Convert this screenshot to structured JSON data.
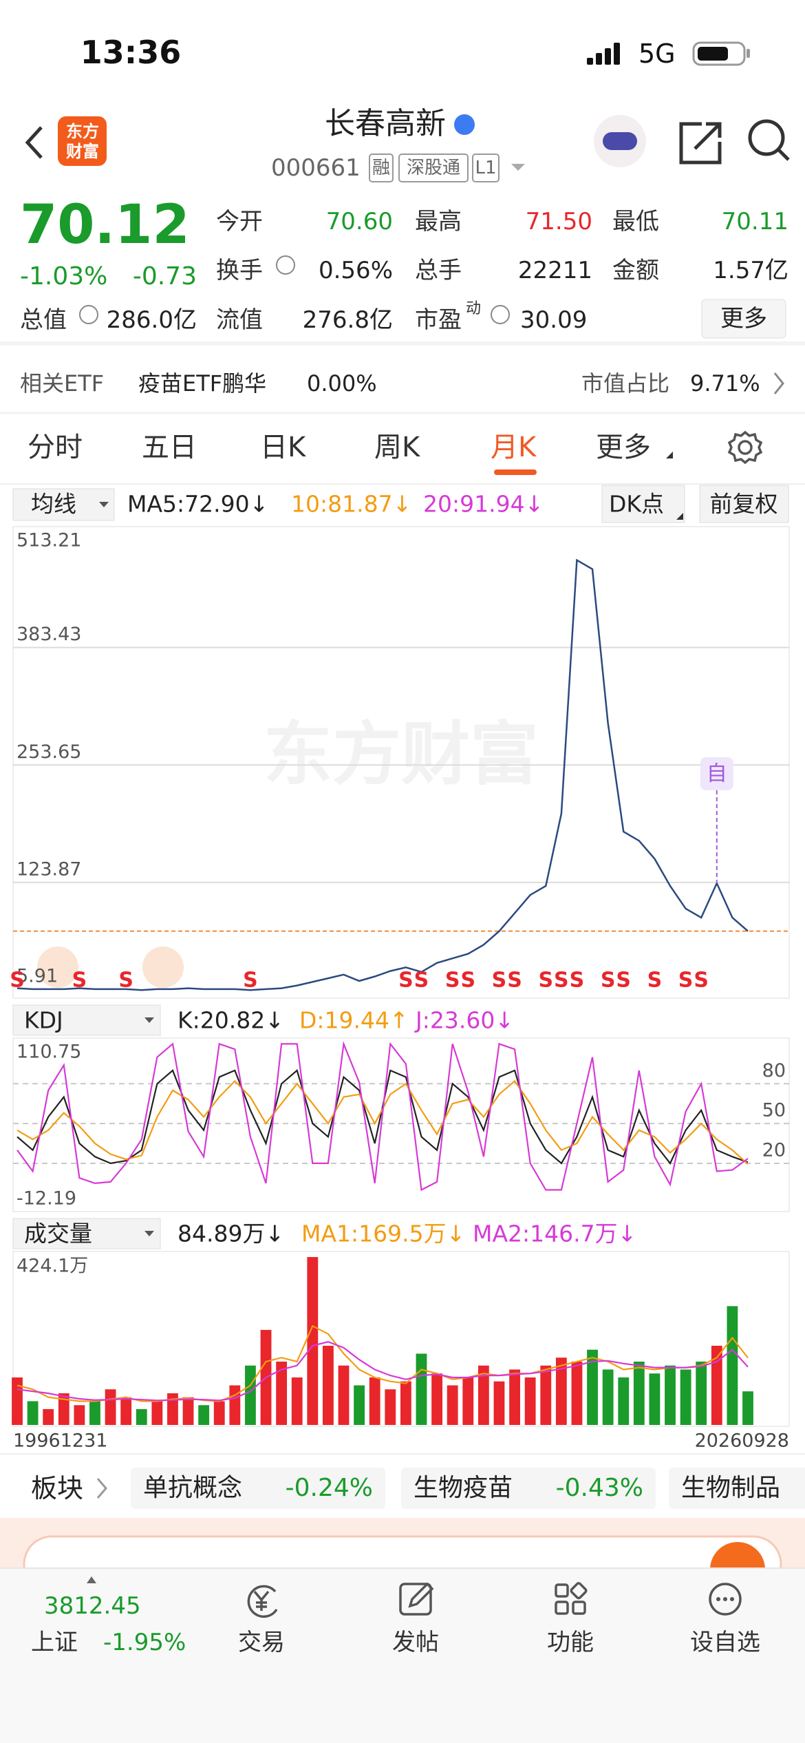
{
  "status_bar": {
    "time": "13:36",
    "network": "5G"
  },
  "header": {
    "logo": [
      "东方",
      "财富"
    ],
    "title": "长春高新",
    "code": "000661",
    "tags": [
      "融",
      "深股通",
      "L1"
    ]
  },
  "quote": {
    "price": "70.12",
    "change_pct": "-1.03%",
    "change": "-0.73",
    "color": "#1a9b2b",
    "fields": [
      {
        "label": "今开",
        "value": "70.60",
        "color": "#1a9b2b"
      },
      {
        "label": "最高",
        "value": "71.50",
        "color": "#e8262b"
      },
      {
        "label": "最低",
        "value": "70.11",
        "color": "#1a9b2b"
      },
      {
        "label": "换手",
        "value": "0.56%"
      },
      {
        "label": "总手",
        "value": "22211"
      },
      {
        "label": "金额",
        "value": "1.57亿"
      },
      {
        "label": "总值",
        "value": "286.0亿"
      },
      {
        "label": "流值",
        "value": "276.8亿"
      },
      {
        "label": "市盈",
        "sup": "动",
        "value": "30.09"
      }
    ],
    "more": "更多"
  },
  "etf": {
    "label": "相关ETF",
    "name": "疫苗ETF鹏华",
    "change": "0.00%",
    "share_label": "市值占比",
    "share": "9.71%"
  },
  "tabs": [
    "分时",
    "五日",
    "日K",
    "周K",
    "月K",
    "更多"
  ],
  "active_tab": 4,
  "ma_row": {
    "selector": "均线",
    "items": [
      {
        "text": "MA5:72.90↓",
        "color": "#222222"
      },
      {
        "text": "10:81.87↓",
        "color": "#f39c12"
      },
      {
        "text": "20:91.94↓",
        "color": "#d63ad6"
      }
    ],
    "buttons": [
      "DK点",
      "前复权"
    ]
  },
  "price_chart": {
    "type": "line",
    "watermark": "东方财富",
    "color": "#2b4a7f",
    "values": [
      7,
      6,
      6,
      6,
      7,
      6,
      6,
      6,
      5,
      6,
      6,
      7,
      6,
      6,
      6,
      5,
      6,
      7,
      10,
      14,
      18,
      22,
      15,
      20,
      26,
      30,
      25,
      35,
      40,
      45,
      55,
      70,
      90,
      110,
      120,
      200,
      480,
      470,
      300,
      180,
      170,
      150,
      120,
      95,
      85,
      123,
      85,
      70.12
    ],
    "ylim": [
      5.91,
      513.21
    ],
    "yticks": [
      513.21,
      383.43,
      253.65,
      123.87,
      5.91
    ],
    "grid": true,
    "last_price": 70.12,
    "last_price_color": "#f08a3c",
    "signals": {
      "label": "S",
      "color": "#e8262b",
      "indices": [
        0,
        4,
        7,
        15,
        25,
        26,
        28,
        29,
        31,
        32,
        34,
        35,
        36,
        38,
        39,
        41,
        43,
        44
      ]
    },
    "marker": {
      "label": "自",
      "index": 45,
      "color": "#a25ad9"
    }
  },
  "kdj_row": {
    "selector": "KDJ",
    "items": [
      {
        "text": "K:20.82↓",
        "color": "#222222"
      },
      {
        "text": "D:19.44↑",
        "color": "#f39c12"
      },
      {
        "text": "J:23.60↓",
        "color": "#d63ad6"
      }
    ]
  },
  "kdj_chart": {
    "type": "line",
    "ylim": [
      -12.19,
      110.75
    ],
    "yticks": [
      110.75,
      -12.19
    ],
    "ref_lines": [
      80,
      50,
      20
    ],
    "series": [
      {
        "color": "#222222",
        "values": [
          40,
          30,
          55,
          70,
          35,
          25,
          20,
          22,
          30,
          80,
          90,
          60,
          45,
          85,
          90,
          60,
          35,
          80,
          90,
          50,
          40,
          85,
          75,
          35,
          90,
          85,
          40,
          30,
          80,
          70,
          45,
          85,
          90,
          50,
          30,
          20,
          40,
          70,
          30,
          25,
          60,
          35,
          20,
          45,
          60,
          30,
          25,
          20.82
        ]
      },
      {
        "color": "#f39c12",
        "values": [
          45,
          38,
          45,
          58,
          48,
          35,
          27,
          23,
          26,
          55,
          75,
          68,
          55,
          70,
          82,
          70,
          50,
          65,
          80,
          65,
          50,
          70,
          72,
          50,
          72,
          80,
          60,
          42,
          65,
          68,
          55,
          72,
          82,
          65,
          45,
          30,
          35,
          55,
          42,
          30,
          45,
          40,
          28,
          38,
          50,
          38,
          30,
          19.44
        ]
      },
      {
        "color": "#d63ad6",
        "values": [
          30,
          14,
          75,
          94,
          9,
          5,
          6,
          20,
          38,
          100,
          110,
          44,
          25,
          110,
          106,
          40,
          5,
          110,
          110,
          20,
          20,
          110,
          81,
          5,
          110,
          95,
          0,
          6,
          110,
          74,
          25,
          110,
          106,
          20,
          0,
          0,
          50,
          100,
          6,
          15,
          90,
          25,
          4,
          59,
          80,
          14,
          15,
          23.6
        ]
      }
    ]
  },
  "volume_row": {
    "selector": "成交量",
    "items": [
      {
        "text": "84.89万↓",
        "color": "#222222"
      },
      {
        "text": "MA1:169.5万↓",
        "color": "#f39c12"
      },
      {
        "text": "MA2:146.7万↓",
        "color": "#d63ad6"
      }
    ]
  },
  "volume_chart": {
    "type": "bar",
    "up_color": "#e8262b",
    "down_color": "#1a9b2b",
    "values": [
      120,
      60,
      40,
      80,
      50,
      60,
      90,
      70,
      40,
      60,
      80,
      70,
      50,
      60,
      100,
      150,
      240,
      160,
      120,
      424,
      200,
      150,
      100,
      120,
      90,
      110,
      180,
      130,
      100,
      120,
      150,
      110,
      140,
      120,
      150,
      170,
      160,
      190,
      140,
      120,
      160,
      130,
      150,
      140,
      160,
      200,
      300,
      84.89
    ],
    "lines": [
      {
        "color": "#f39c12",
        "values": [
          100,
          90,
          70,
          65,
          60,
          60,
          65,
          70,
          60,
          60,
          65,
          68,
          62,
          60,
          75,
          100,
          160,
          170,
          160,
          250,
          230,
          180,
          140,
          120,
          110,
          105,
          140,
          130,
          115,
          120,
          130,
          125,
          130,
          130,
          140,
          150,
          160,
          170,
          160,
          140,
          145,
          140,
          145,
          145,
          150,
          170,
          220,
          169.5
        ]
      },
      {
        "color": "#d63ad6",
        "values": [
          90,
          85,
          80,
          72,
          66,
          63,
          64,
          66,
          64,
          62,
          63,
          65,
          64,
          62,
          68,
          85,
          120,
          140,
          150,
          200,
          210,
          195,
          165,
          140,
          125,
          115,
          125,
          128,
          120,
          120,
          125,
          125,
          128,
          130,
          135,
          142,
          150,
          160,
          162,
          155,
          150,
          145,
          145,
          145,
          148,
          160,
          190,
          146.7
        ]
      }
    ],
    "ylim": [
      0,
      424.1
    ],
    "yticks": [
      {
        "value": 424.1,
        "label": "424.1万"
      }
    ]
  },
  "date_range": [
    "19961231",
    "20260928"
  ],
  "sectors": {
    "label": "板块",
    "items": [
      {
        "name": "单抗概念",
        "change": "-0.24%"
      },
      {
        "name": "生物疫苗",
        "change": "-0.43%"
      },
      {
        "name": "生物制品"
      }
    ]
  },
  "bottom_nav": {
    "index": {
      "value": "3812.45",
      "name": "上证",
      "change": "-1.95%"
    },
    "items": [
      "交易",
      "发帖",
      "功能",
      "设自选"
    ]
  }
}
